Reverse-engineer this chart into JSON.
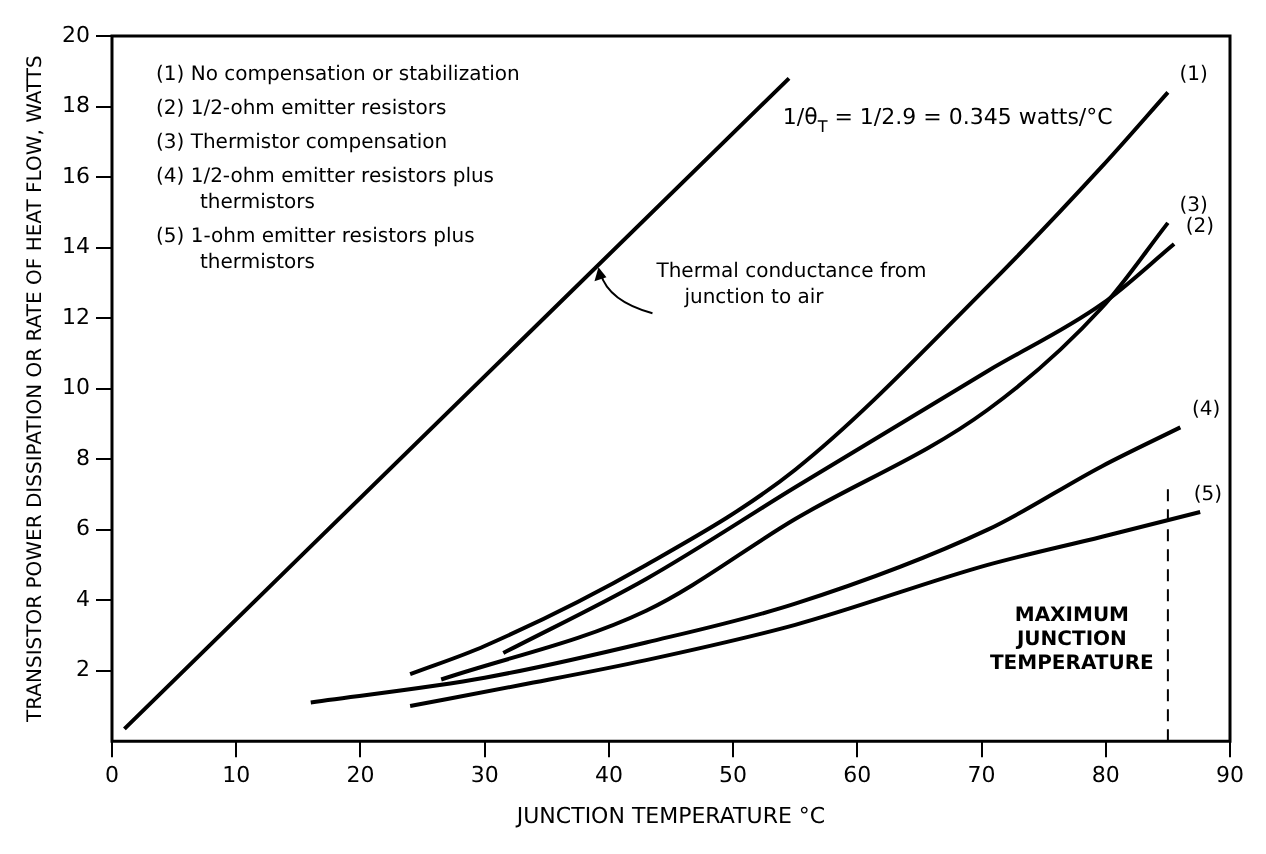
{
  "chart_data": {
    "type": "line",
    "xlabel": "JUNCTION TEMPERATURE °C",
    "ylabel": "TRANSISTOR POWER DISSIPATION OR RATE OF HEAT FLOW, WATTS",
    "xlim": [
      0,
      90
    ],
    "xticks": [
      0,
      10,
      20,
      30,
      40,
      50,
      60,
      70,
      80,
      90
    ],
    "ylim": [
      0,
      20
    ],
    "yticks": [
      2,
      4,
      6,
      8,
      10,
      12,
      14,
      16,
      18,
      20
    ],
    "series": [
      {
        "color": "#000000",
        "x": [
          1,
          54.5
        ],
        "values": [
          0.35,
          18.8
        ]
      },
      {
        "name": "(1)",
        "color": "#000000",
        "x": [
          24,
          30,
          43,
          55,
          70.5,
          79.7,
          85
        ],
        "values": [
          1.9,
          2.7,
          5.0,
          7.7,
          12.9,
          16.3,
          18.4
        ]
      },
      {
        "name": "(2)",
        "color": "#000000",
        "x": [
          31.5,
          43,
          55,
          70.5,
          79.7,
          85.5
        ],
        "values": [
          2.5,
          4.6,
          7.2,
          10.5,
          12.4,
          14.1
        ]
      },
      {
        "name": "(3)",
        "color": "#000000",
        "x": [
          26.5,
          43,
          55,
          70.5,
          79.7,
          85
        ],
        "values": [
          1.75,
          3.7,
          6.3,
          9.4,
          12.3,
          14.7
        ]
      },
      {
        "name": "(4)",
        "color": "#000000",
        "x": [
          16,
          30,
          43,
          55,
          70.5,
          79.7,
          86
        ],
        "values": [
          1.1,
          1.8,
          2.8,
          3.9,
          6.0,
          7.8,
          8.9
        ]
      },
      {
        "name": "(5)",
        "color": "#000000",
        "x": [
          24,
          33,
          43,
          55,
          70.5,
          79.7,
          87.6
        ],
        "values": [
          1.0,
          1.6,
          2.3,
          3.3,
          5.0,
          5.8,
          6.5
        ]
      }
    ],
    "ref_lines": [
      {
        "axis": "x",
        "value": 85,
        "label": "MAXIMUM JUNCTION TEMPERATURE",
        "line_style": "dashed"
      }
    ],
    "annotations": [
      "(1) No compensation or stabilization",
      "(2) 1/2-ohm emitter resistors",
      "(3) Thermistor compensation",
      "(4) 1/2-ohm emitter resistors plus thermistors",
      "(5) 1-ohm emitter resistors plus thermistors",
      "1/θ$_{T}$ = 1/2.9 = 0.345 watts/°C",
      {
        "text": "Thermal conductance from junction to air",
        "x": 39,
        "y": 13.5
      }
    ]
  }
}
